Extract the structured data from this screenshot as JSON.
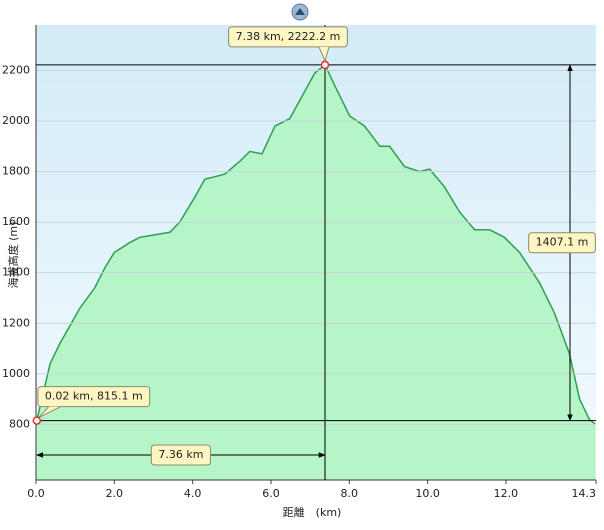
{
  "chart_data": {
    "type": "area",
    "x_label": "距離　(km)",
    "y_label": "海拔高度 (m)",
    "x": [
      0.02,
      0.36,
      0.61,
      1.12,
      1.5,
      1.76,
      2.0,
      2.4,
      2.65,
      3.04,
      3.42,
      3.67,
      4.06,
      4.31,
      4.57,
      4.82,
      5.2,
      5.46,
      5.77,
      6.1,
      6.48,
      6.73,
      7.12,
      7.38,
      7.63,
      8.01,
      8.39,
      8.78,
      9.03,
      9.41,
      9.8,
      10.05,
      10.43,
      10.82,
      11.2,
      11.58,
      11.96,
      12.35,
      12.86,
      13.24,
      13.62,
      13.88,
      14.13,
      14.29
    ],
    "values": [
      815.1,
      1040,
      1120,
      1260,
      1340,
      1420,
      1480,
      1520,
      1540,
      1550,
      1560,
      1600,
      1700,
      1770,
      1780,
      1790,
      1840,
      1880,
      1870,
      1980,
      2010,
      2080,
      2190,
      2222.2,
      2140,
      2020,
      1980,
      1900,
      1900,
      1820,
      1800,
      1810,
      1740,
      1640,
      1570,
      1570,
      1540,
      1480,
      1360,
      1240,
      1080,
      900,
      820,
      800
    ],
    "color": "#2e9e52",
    "fill": "#b5f5c8",
    "xlim": [
      0,
      14.3
    ],
    "xticks": [
      {
        "value": 0,
        "label": "0.0"
      },
      {
        "value": 2,
        "label": "2.0"
      },
      {
        "value": 4,
        "label": "4.0"
      },
      {
        "value": 6,
        "label": "6.0"
      },
      {
        "value": 8,
        "label": "8.0"
      },
      {
        "value": 10,
        "label": "10.0"
      },
      {
        "value": 12,
        "label": "12.0"
      },
      14.3
    ],
    "ylim": [
      580,
      2380
    ],
    "yticks": [
      800,
      1000,
      1200,
      1400,
      1600,
      1800,
      2000,
      2200
    ],
    "grid": true,
    "markers": [
      {
        "x": 0.02,
        "y": 815.1,
        "label": "0.02 km, 815.1 m"
      },
      {
        "x": 7.38,
        "y": 2222.2,
        "label": "7.38 km, 2222.2 m"
      }
    ],
    "distance": {
      "value": 7.36,
      "label": "7.36 km"
    },
    "climb": {
      "value": 1407.1,
      "label": "1407.1 m"
    }
  }
}
